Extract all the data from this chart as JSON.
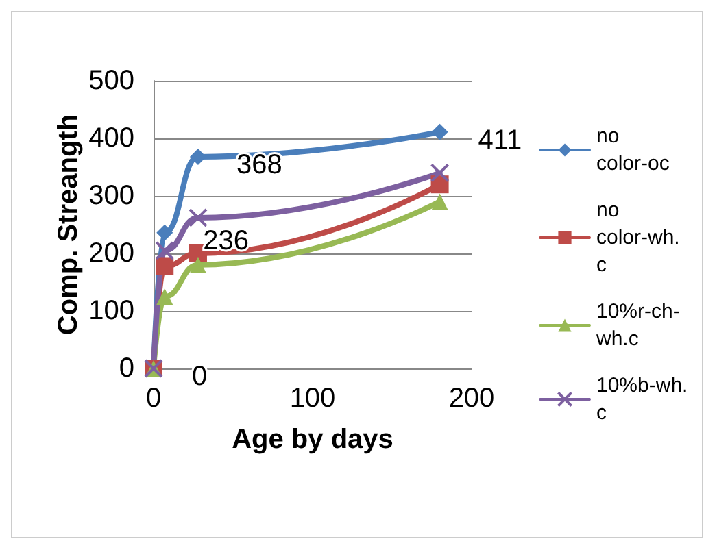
{
  "chart_data": {
    "type": "line",
    "xlabel": "Age by days",
    "ylabel": "Comp. Streangth",
    "x": [
      0,
      7,
      28,
      180
    ],
    "series": [
      {
        "name": "no color-oc",
        "color": "#4a7ebb",
        "marker": "diamond",
        "values": [
          0,
          236,
          368,
          411
        ],
        "value_labels": [
          "0",
          "236",
          "368",
          "411"
        ]
      },
      {
        "name": "no color-wh.c",
        "color": "#be4b48",
        "marker": "square",
        "values": [
          0,
          178,
          200,
          320
        ]
      },
      {
        "name": "10%r-ch-wh.c",
        "color": "#98b954",
        "marker": "triangle",
        "values": [
          0,
          125,
          180,
          290
        ]
      },
      {
        "name": "10%b-wh.c",
        "color": "#7d60a0",
        "marker": "cross",
        "values": [
          0,
          205,
          262,
          340
        ]
      }
    ],
    "xlim": [
      0,
      200
    ],
    "xticks": [
      0,
      100,
      200
    ],
    "ylim": [
      0,
      500
    ],
    "yticks": [
      0,
      100,
      200,
      300,
      400,
      500
    ],
    "grid": "y",
    "legend": "right",
    "line_style": "solid"
  }
}
